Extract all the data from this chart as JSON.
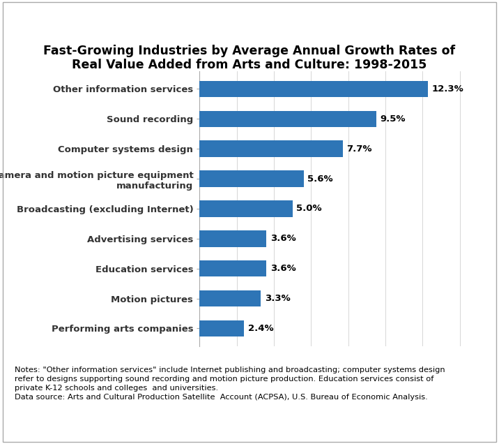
{
  "title": "Fast-Growing Industries by Average Annual Growth Rates of\nReal Value Added from Arts and Culture: 1998-2015",
  "categories": [
    "Performing arts companies",
    "Motion pictures",
    "Education services",
    "Advertising services",
    "Broadcasting (excluding Internet)",
    "Camera and motion picture equipment\nmanufacturing",
    "Computer systems design",
    "Sound recording",
    "Other information services"
  ],
  "values": [
    2.4,
    3.3,
    3.6,
    3.6,
    5.0,
    5.6,
    7.7,
    9.5,
    12.3
  ],
  "labels": [
    "2.4%",
    "3.3%",
    "3.6%",
    "3.6%",
    "5.0%",
    "5.6%",
    "7.7%",
    "9.5%",
    "12.3%"
  ],
  "bar_color": "#2E75B6",
  "title_fontsize": 12.5,
  "label_fontsize": 9.5,
  "value_fontsize": 9.5,
  "note_text": "Notes: \"Other information services\" include Internet publishing and broadcasting; computer systems design\nrefer to designs supporting sound recording and motion picture production. Education services consist of\nprivate K-12 schools and colleges  and universities.\nData source: Arts and Cultural Production Satellite  Account (ACPSA), U.S. Bureau of Economic Analysis.",
  "note_fontsize": 8.2,
  "xlim": [
    0,
    14.5
  ],
  "background_color": "#ffffff",
  "border_color": "#aaaaaa"
}
